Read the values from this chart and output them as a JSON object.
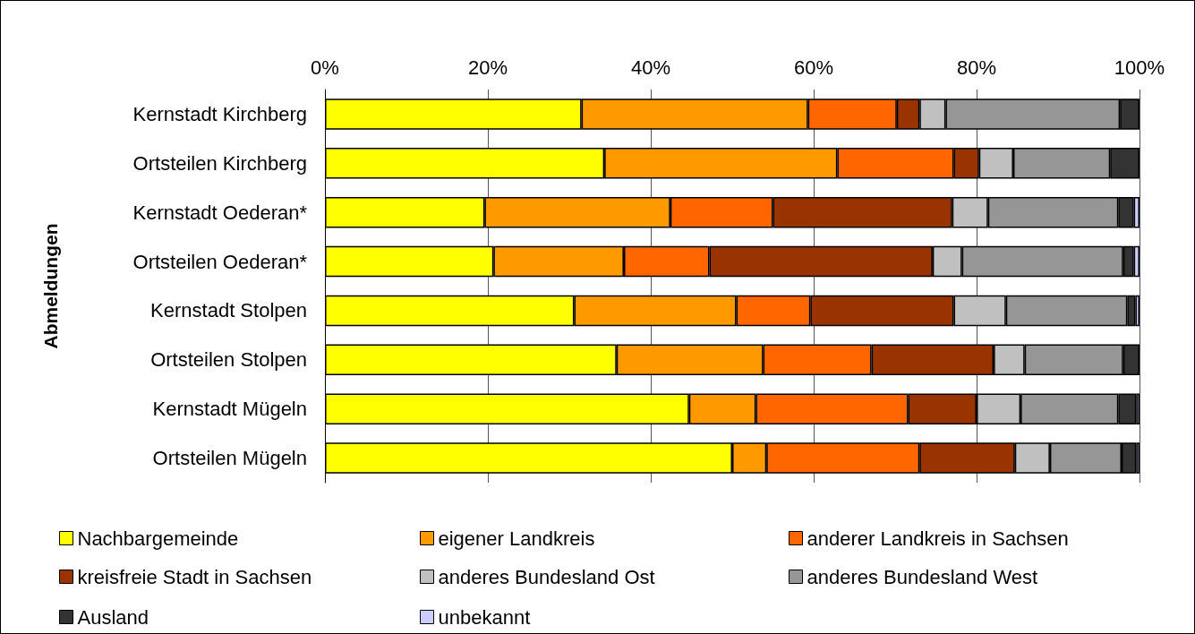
{
  "chart_data": {
    "type": "bar",
    "orientation": "horizontal",
    "stacked": true,
    "ylabel": "Abmeldungen",
    "categories": [
      "Kernstadt Kirchberg",
      "Ortsteilen Kirchberg",
      "Kernstadt Oederan*",
      "Ortsteilen Oederan*",
      "Kernstadt Stolpen",
      "Ortsteilen Stolpen",
      "Kernstadt Mügeln",
      "Ortsteilen Mügeln"
    ],
    "series": [
      {
        "name": "Nachbargemeinde",
        "color": "#ffff00",
        "values": [
          31.5,
          34.3,
          19.6,
          20.7,
          30.6,
          35.8,
          44.7,
          50.0
        ]
      },
      {
        "name": "eigener Landkreis",
        "color": "#ff9900",
        "values": [
          27.8,
          28.6,
          22.8,
          16.0,
          19.9,
          18.0,
          8.2,
          4.2
        ]
      },
      {
        "name": "anderer Landkreis in Sachsen",
        "color": "#ff6600",
        "values": [
          10.9,
          14.3,
          12.6,
          10.5,
          9.1,
          13.3,
          18.7,
          18.8
        ]
      },
      {
        "name": "kreisfreie Stadt in Sachsen",
        "color": "#993300",
        "values": [
          2.8,
          3.1,
          22.0,
          27.4,
          17.6,
          15.0,
          8.4,
          11.7
        ]
      },
      {
        "name": "anderes Bundesland Ost",
        "color": "#c0c0c0",
        "values": [
          3.2,
          4.2,
          4.4,
          3.6,
          6.4,
          3.8,
          5.4,
          4.3
        ]
      },
      {
        "name": "anderes Bundesland West",
        "color": "#969696",
        "values": [
          21.4,
          11.9,
          16.0,
          19.8,
          14.9,
          12.1,
          12.0,
          8.8
        ]
      },
      {
        "name": "Ausland",
        "color": "#333333",
        "values": [
          2.4,
          3.6,
          1.9,
          1.3,
          1.0,
          2.0,
          2.2,
          1.8
        ]
      },
      {
        "name": "unbekannt",
        "color": "#ccccff",
        "values": [
          null,
          null,
          0.7,
          0.7,
          0.5,
          null,
          0.4,
          0.4
        ]
      }
    ],
    "xlim": [
      0,
      100
    ],
    "xticks": [
      {
        "value": 0,
        "label": "0%"
      },
      {
        "value": 20,
        "label": "20%"
      },
      {
        "value": 40,
        "label": "40%"
      },
      {
        "value": 60,
        "label": "60%"
      },
      {
        "value": 80,
        "label": "80%"
      },
      {
        "value": 100,
        "label": "100%"
      }
    ],
    "grid": "x",
    "legend": "bottom"
  }
}
